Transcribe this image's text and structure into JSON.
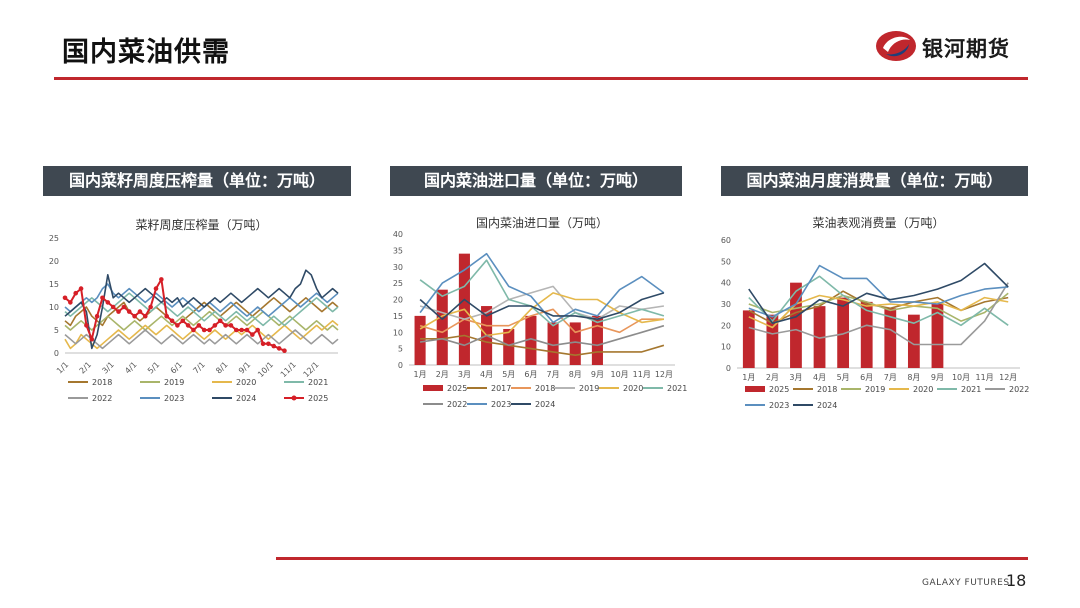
{
  "page": {
    "title": "国内菜油供需",
    "logo_text": "银河期货",
    "footer_brand": "GALAXY FUTURES",
    "page_number": "18",
    "accent_color": "#c0272d"
  },
  "panels": [
    {
      "header": "国内菜籽周度压榨量（单位：万吨）"
    },
    {
      "header": "国内菜油进口量（单位：万吨）"
    },
    {
      "header": "国内菜油月度消费量（单位：万吨）"
    }
  ],
  "chart_data": [
    {
      "type": "line",
      "title": "菜籽周度压榨量（万吨）",
      "ylim": [
        0,
        25
      ],
      "yticks": [
        0,
        5,
        10,
        15,
        20,
        25
      ],
      "xticks": [
        "1/1",
        "2/1",
        "3/1",
        "4/1",
        "5/1",
        "6/1",
        "7/1",
        "8/1",
        "9/1",
        "10/1",
        "11/1",
        "12/1"
      ],
      "x_points_per_year": 52,
      "grid": false,
      "legend": "bottom",
      "series": [
        {
          "name": "2018",
          "color": "#a5772f",
          "values": [
            7,
            6,
            8,
            9,
            10,
            8,
            7,
            6,
            8,
            9,
            10,
            11,
            9,
            8,
            7,
            8,
            9,
            10,
            9,
            8,
            7,
            6,
            7,
            8,
            9,
            10,
            11,
            10,
            9,
            8,
            9,
            10,
            11,
            10,
            9,
            8,
            9,
            10,
            11,
            12,
            11,
            10,
            9,
            10,
            11,
            12,
            11,
            10,
            9,
            10,
            11,
            10
          ]
        },
        {
          "name": "2019",
          "color": "#a9b56a",
          "values": [
            6,
            5,
            6,
            7,
            6,
            5,
            6,
            7,
            8,
            7,
            6,
            5,
            6,
            7,
            6,
            5,
            6,
            7,
            8,
            7,
            6,
            7,
            8,
            7,
            6,
            7,
            8,
            9,
            8,
            7,
            6,
            7,
            8,
            7,
            6,
            7,
            8,
            9,
            8,
            7,
            6,
            7,
            8,
            7,
            6,
            5,
            6,
            7,
            6,
            5,
            6,
            5
          ]
        },
        {
          "name": "2020",
          "color": "#e5b84c",
          "values": [
            3,
            1,
            2,
            4,
            3,
            2,
            1,
            2,
            3,
            4,
            5,
            4,
            3,
            4,
            5,
            6,
            5,
            4,
            5,
            6,
            5,
            4,
            3,
            4,
            5,
            4,
            3,
            4,
            5,
            4,
            3,
            4,
            5,
            4,
            5,
            6,
            5,
            4,
            3,
            4,
            5,
            6,
            5,
            4,
            3,
            4,
            5,
            6,
            5,
            6,
            7,
            6
          ]
        },
        {
          "name": "2021",
          "color": "#7fb9a9",
          "values": [
            9,
            8,
            9,
            10,
            11,
            12,
            11,
            10,
            9,
            10,
            11,
            12,
            13,
            12,
            11,
            10,
            9,
            10,
            11,
            10,
            9,
            8,
            9,
            10,
            9,
            8,
            7,
            8,
            9,
            8,
            7,
            8,
            9,
            8,
            7,
            8,
            7,
            6,
            7,
            8,
            7,
            6,
            7,
            8,
            9,
            10,
            11,
            12,
            11,
            10,
            9,
            10
          ]
        },
        {
          "name": "2022",
          "color": "#9a9a9a",
          "values": [
            4,
            3,
            2,
            3,
            4,
            3,
            2,
            1,
            2,
            3,
            4,
            3,
            2,
            3,
            4,
            5,
            4,
            3,
            2,
            3,
            4,
            3,
            2,
            3,
            4,
            3,
            2,
            3,
            2,
            3,
            4,
            3,
            2,
            3,
            4,
            3,
            2,
            3,
            4,
            3,
            2,
            3,
            4,
            5,
            4,
            3,
            2,
            3,
            4,
            3,
            2,
            3
          ]
        },
        {
          "name": "2023",
          "color": "#5b8fbf",
          "values": [
            10,
            9,
            10,
            11,
            12,
            11,
            12,
            14,
            15,
            13,
            12,
            13,
            14,
            13,
            12,
            11,
            12,
            13,
            12,
            11,
            10,
            11,
            12,
            11,
            10,
            9,
            10,
            11,
            10,
            9,
            10,
            11,
            10,
            9,
            8,
            9,
            10,
            9,
            8,
            9,
            10,
            11,
            12,
            11,
            10,
            11,
            12,
            13,
            12,
            11,
            12,
            13
          ]
        },
        {
          "name": "2024",
          "color": "#2f4a66",
          "values": [
            8,
            9,
            10,
            11,
            9,
            1,
            4,
            10,
            17,
            12,
            13,
            12,
            11,
            12,
            13,
            14,
            13,
            12,
            11,
            12,
            11,
            12,
            10,
            11,
            12,
            11,
            10,
            11,
            12,
            11,
            12,
            13,
            12,
            11,
            12,
            13,
            14,
            13,
            12,
            13,
            14,
            13,
            12,
            14,
            15,
            18,
            17,
            14,
            12,
            13,
            14,
            13
          ]
        },
        {
          "name": "2025",
          "color": "#d61f27",
          "marker": true,
          "values": [
            12,
            11,
            13,
            14,
            6,
            3,
            8,
            12,
            11,
            10,
            9,
            10,
            9,
            8,
            9,
            8,
            10,
            14,
            16,
            8,
            7,
            6,
            7,
            6,
            5,
            6,
            5,
            5,
            6,
            7,
            6,
            6,
            5,
            5,
            5,
            4,
            5,
            2,
            2,
            1.5,
            1,
            0.5
          ]
        }
      ]
    },
    {
      "type": "bar+line",
      "title": "国内菜油进口量（万吨）",
      "ylim": [
        0,
        40
      ],
      "yticks": [
        0,
        5,
        10,
        15,
        20,
        25,
        30,
        35,
        40
      ],
      "categories": [
        "1月",
        "2月",
        "3月",
        "4月",
        "5月",
        "6月",
        "7月",
        "8月",
        "9月",
        "10月",
        "11月",
        "12月"
      ],
      "grid": false,
      "legend": "bottom",
      "bar_series": {
        "name": "2025",
        "color": "#c0272d",
        "values": [
          15,
          23,
          34,
          18,
          11,
          15,
          13,
          13,
          15
        ]
      },
      "series": [
        {
          "name": "2017",
          "color": "#a5772f",
          "values": [
            8,
            8,
            9,
            7,
            6,
            5,
            4,
            3,
            4,
            4,
            4,
            6
          ]
        },
        {
          "name": "2018",
          "color": "#e8965b",
          "values": [
            12,
            10,
            14,
            12,
            12,
            15,
            17,
            10,
            12,
            10,
            14,
            14
          ]
        },
        {
          "name": "2019",
          "color": "#b5b5b5",
          "values": [
            18,
            16,
            14,
            16,
            20,
            22,
            24,
            16,
            14,
            18,
            17,
            18
          ]
        },
        {
          "name": "2020",
          "color": "#e5b84c",
          "values": [
            11,
            15,
            17,
            9,
            10,
            17,
            22,
            20,
            20,
            16,
            13,
            14
          ]
        },
        {
          "name": "2021",
          "color": "#7fb9a9",
          "values": [
            26,
            21,
            24,
            32,
            20,
            18,
            12,
            16,
            13,
            15,
            17,
            15
          ]
        },
        {
          "name": "2022",
          "color": "#8c8c8c",
          "values": [
            7,
            8,
            6,
            9,
            6,
            8,
            6,
            7,
            6,
            8,
            10,
            12
          ]
        },
        {
          "name": "2023",
          "color": "#5b8fbf",
          "values": [
            16,
            25,
            29,
            34,
            24,
            21,
            13,
            17,
            15,
            23,
            27,
            22
          ]
        },
        {
          "name": "2024",
          "color": "#2f4a66",
          "values": [
            20,
            14,
            20,
            15,
            18,
            18,
            15,
            15,
            14,
            16,
            20,
            22
          ]
        }
      ]
    },
    {
      "type": "bar+line",
      "title": "菜油表观消费量（万吨）",
      "ylim": [
        0,
        60
      ],
      "yticks": [
        0,
        10,
        20,
        30,
        40,
        50,
        60
      ],
      "categories": [
        "1月",
        "2月",
        "3月",
        "4月",
        "5月",
        "6月",
        "7月",
        "8月",
        "9月",
        "10月",
        "11月",
        "12月"
      ],
      "grid": false,
      "legend": "bottom",
      "bar_series": {
        "name": "2025",
        "color": "#c0272d",
        "values": [
          27,
          25,
          40,
          29,
          33,
          31,
          28,
          25,
          30
        ]
      },
      "series": [
        {
          "name": "2018",
          "color": "#a5772f",
          "values": [
            27,
            21,
            26,
            29,
            36,
            30,
            28,
            31,
            33,
            27,
            31,
            33
          ]
        },
        {
          "name": "2019",
          "color": "#a9b56a",
          "values": [
            30,
            26,
            28,
            30,
            34,
            31,
            27,
            29,
            28,
            22,
            26,
            35
          ]
        },
        {
          "name": "2020",
          "color": "#e5b84c",
          "values": [
            24,
            19,
            30,
            34,
            32,
            29,
            30,
            29,
            31,
            27,
            33,
            31
          ]
        },
        {
          "name": "2021",
          "color": "#7fb9a9",
          "values": [
            33,
            22,
            36,
            43,
            34,
            27,
            24,
            21,
            26,
            20,
            28,
            20
          ]
        },
        {
          "name": "2022",
          "color": "#9a9a9a",
          "values": [
            19,
            16,
            18,
            14,
            16,
            20,
            18,
            11,
            11,
            11,
            22,
            40
          ]
        },
        {
          "name": "2023",
          "color": "#5b8fbf",
          "values": [
            28,
            24,
            30,
            48,
            42,
            42,
            31,
            31,
            30,
            34,
            37,
            38
          ]
        },
        {
          "name": "2024",
          "color": "#2f4a66",
          "values": [
            37,
            21,
            24,
            32,
            29,
            35,
            32,
            34,
            37,
            41,
            49,
            38
          ]
        }
      ]
    }
  ]
}
